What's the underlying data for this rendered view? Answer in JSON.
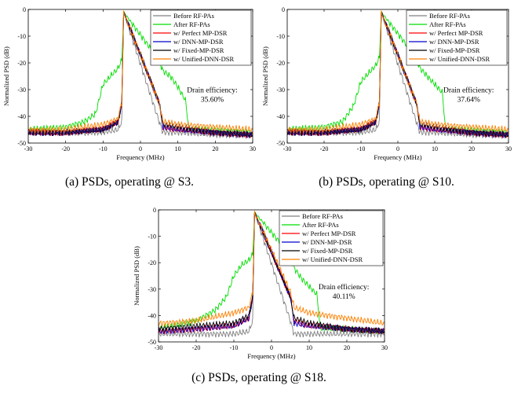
{
  "chart_data": [
    {
      "type": "line",
      "panel": "a",
      "caption": "(a) PSDs, operating @ S3.",
      "xlabel": "Frequency (MHz)",
      "ylabel": "Normalized PSD (dB)",
      "xlim": [
        -30,
        30
      ],
      "ylim": [
        -50,
        0
      ],
      "xticks": [
        -30,
        -20,
        -10,
        0,
        10,
        20,
        30
      ],
      "yticks": [
        0,
        -10,
        -20,
        -30,
        -40,
        -50
      ],
      "grid": false,
      "legend_position": "top-right",
      "annotation": {
        "title": "Drain efficiency:",
        "value": "35.60%"
      },
      "series": [
        {
          "name": "Before RF-PAs",
          "color": "#808080",
          "x": [
            -30,
            -20,
            -10,
            -6,
            -5,
            -4.5,
            5,
            6,
            10,
            20,
            30
          ],
          "y": [
            -46,
            -46,
            -46,
            -45,
            -42,
            -1,
            -42,
            -46,
            -46,
            -47,
            -47
          ]
        },
        {
          "name": "After RF-PAs",
          "color": "#00dd00",
          "x": [
            -30,
            -20,
            -15,
            -12,
            -10,
            -8,
            -6,
            -5,
            -4.5,
            5,
            6,
            8,
            10,
            12,
            13,
            20,
            30
          ],
          "y": [
            -45,
            -44,
            -42,
            -39,
            -28,
            -25,
            -22,
            -19,
            -1,
            -19,
            -23,
            -25,
            -29,
            -34,
            -45,
            -45,
            -46
          ]
        },
        {
          "name": "w/ Perfect MP-DSR",
          "color": "#ff0000",
          "x": [
            -30,
            -20,
            -10,
            -6,
            -5,
            -4.5,
            5,
            6,
            10,
            20,
            30
          ],
          "y": [
            -46,
            -46,
            -45,
            -42,
            -35,
            -1,
            -35,
            -44,
            -45,
            -46,
            -47
          ]
        },
        {
          "name": "w/ DNN-MP-DSR",
          "color": "#0000cc",
          "x": [
            -30,
            -20,
            -10,
            -6,
            -5,
            -4.5,
            5,
            6,
            10,
            20,
            30
          ],
          "y": [
            -46,
            -46,
            -45,
            -42,
            -35,
            -1,
            -35,
            -44,
            -45,
            -46,
            -47
          ]
        },
        {
          "name": "w/ Fixed-MP-DSR",
          "color": "#000000",
          "x": [
            -30,
            -20,
            -10,
            -6,
            -5,
            -4.5,
            5,
            6,
            10,
            20,
            30
          ],
          "y": [
            -46,
            -46,
            -45,
            -42,
            -35,
            -1,
            -35,
            -43,
            -44,
            -46,
            -47
          ]
        },
        {
          "name": "w/ Unified-DNN-DSR",
          "color": "#ff8000",
          "x": [
            -30,
            -20,
            -10,
            -6,
            -5,
            -4.5,
            5,
            6,
            10,
            20,
            30
          ],
          "y": [
            -45,
            -45,
            -43,
            -41,
            -35,
            -1,
            -35,
            -42,
            -43,
            -44,
            -45
          ]
        }
      ]
    },
    {
      "type": "line",
      "panel": "b",
      "caption": "(b) PSDs, operating @ S10.",
      "xlabel": "Frequency (MHz)",
      "ylabel": "Normalized PSD (dB)",
      "xlim": [
        -30,
        30
      ],
      "ylim": [
        -50,
        0
      ],
      "xticks": [
        -30,
        -20,
        -10,
        0,
        10,
        20,
        30
      ],
      "yticks": [
        0,
        -10,
        -20,
        -30,
        -40,
        -50
      ],
      "grid": false,
      "legend_position": "top-right",
      "annotation": {
        "title": "Drain efficiency:",
        "value": "37.64%"
      },
      "series": [
        {
          "name": "Before RF-PAs",
          "color": "#808080",
          "x": [
            -30,
            -20,
            -10,
            -6,
            -5,
            -4.5,
            5,
            6,
            10,
            20,
            30
          ],
          "y": [
            -46,
            -46,
            -46,
            -45,
            -42,
            -1,
            -42,
            -46,
            -46,
            -47,
            -47
          ]
        },
        {
          "name": "After RF-PAs",
          "color": "#00dd00",
          "x": [
            -30,
            -20,
            -15,
            -12,
            -10,
            -8,
            -6,
            -5,
            -4.5,
            5,
            6,
            8,
            10,
            12,
            13,
            20,
            30
          ],
          "y": [
            -45,
            -44,
            -42,
            -36,
            -27,
            -24,
            -21,
            -18,
            -1,
            -18,
            -22,
            -25,
            -28,
            -31,
            -45,
            -45,
            -46
          ]
        },
        {
          "name": "w/ Perfect MP-DSR",
          "color": "#ff0000",
          "x": [
            -30,
            -20,
            -10,
            -6,
            -5,
            -4.5,
            5,
            6,
            10,
            20,
            30
          ],
          "y": [
            -46,
            -46,
            -45,
            -42,
            -35,
            -1,
            -35,
            -44,
            -45,
            -46,
            -47
          ]
        },
        {
          "name": "w/ DNN-MP-DSR",
          "color": "#0000cc",
          "x": [
            -30,
            -20,
            -10,
            -6,
            -5,
            -4.5,
            5,
            6,
            10,
            20,
            30
          ],
          "y": [
            -46,
            -46,
            -45,
            -42,
            -35,
            -1,
            -35,
            -44,
            -45,
            -46,
            -47
          ]
        },
        {
          "name": "w/ Fixed-MP-DSR",
          "color": "#000000",
          "x": [
            -30,
            -20,
            -10,
            -6,
            -5,
            -4.5,
            5,
            6,
            10,
            20,
            30
          ],
          "y": [
            -46,
            -46,
            -45,
            -42,
            -35,
            -1,
            -35,
            -43,
            -44,
            -46,
            -47
          ]
        },
        {
          "name": "w/ Unified-DNN-DSR",
          "color": "#ff8000",
          "x": [
            -30,
            -20,
            -10,
            -6,
            -5,
            -4.5,
            5,
            6,
            10,
            20,
            30
          ],
          "y": [
            -45,
            -45,
            -43,
            -41,
            -35,
            -1,
            -35,
            -42,
            -43,
            -44,
            -45
          ]
        }
      ]
    },
    {
      "type": "line",
      "panel": "c",
      "caption": "(c) PSDs, operating @ S18.",
      "xlabel": "Frequency (MHz)",
      "ylabel": "Normalized PSD (dB)",
      "xlim": [
        -30,
        30
      ],
      "ylim": [
        -50,
        0
      ],
      "xticks": [
        -30,
        -20,
        -10,
        0,
        10,
        20,
        30
      ],
      "yticks": [
        0,
        -10,
        -20,
        -30,
        -40,
        -50
      ],
      "grid": false,
      "legend_position": "top-right",
      "annotation": {
        "title": "Drain efficiency:",
        "value": "40.11%"
      },
      "series": [
        {
          "name": "Before RF-PAs",
          "color": "#808080",
          "x": [
            -30,
            -20,
            -10,
            -6,
            -5,
            -4.5,
            5,
            6,
            10,
            20,
            30
          ],
          "y": [
            -47,
            -47,
            -47,
            -46,
            -42,
            -1,
            -42,
            -47,
            -47,
            -47,
            -47
          ]
        },
        {
          "name": "After RF-PAs",
          "color": "#00dd00",
          "x": [
            -30,
            -20,
            -15,
            -12,
            -10,
            -8,
            -6,
            -5,
            -4.5,
            5,
            6,
            8,
            10,
            12,
            13,
            20,
            30
          ],
          "y": [
            -45,
            -42,
            -38,
            -33,
            -25,
            -21,
            -19,
            -17,
            -1,
            -17,
            -22,
            -26,
            -29,
            -32,
            -45,
            -45,
            -46
          ]
        },
        {
          "name": "w/ Perfect MP-DSR",
          "color": "#ff0000",
          "x": [
            -30,
            -20,
            -10,
            -6,
            -5,
            -4.5,
            5,
            6,
            10,
            20,
            30
          ],
          "y": [
            -46,
            -45,
            -44,
            -41,
            -33,
            -1,
            -33,
            -42,
            -44,
            -45,
            -46
          ]
        },
        {
          "name": "w/ DNN-MP-DSR",
          "color": "#0000cc",
          "x": [
            -30,
            -20,
            -10,
            -6,
            -5,
            -4.5,
            5,
            6,
            10,
            20,
            30
          ],
          "y": [
            -46,
            -45,
            -44,
            -41,
            -33,
            -1,
            -33,
            -43,
            -44,
            -45,
            -46
          ]
        },
        {
          "name": "w/ Fixed-MP-DSR",
          "color": "#000000",
          "x": [
            -30,
            -20,
            -10,
            -6,
            -5,
            -4.5,
            5,
            6,
            10,
            20,
            30
          ],
          "y": [
            -45,
            -44,
            -43,
            -40,
            -33,
            -1,
            -33,
            -41,
            -43,
            -45,
            -46
          ]
        },
        {
          "name": "w/ Unified-DNN-DSR",
          "color": "#ff8000",
          "x": [
            -30,
            -20,
            -10,
            -6,
            -5,
            -4.5,
            5,
            6,
            10,
            20,
            30
          ],
          "y": [
            -43,
            -42,
            -39,
            -37,
            -31,
            -1,
            -31,
            -37,
            -39,
            -41,
            -43
          ]
        }
      ]
    }
  ]
}
